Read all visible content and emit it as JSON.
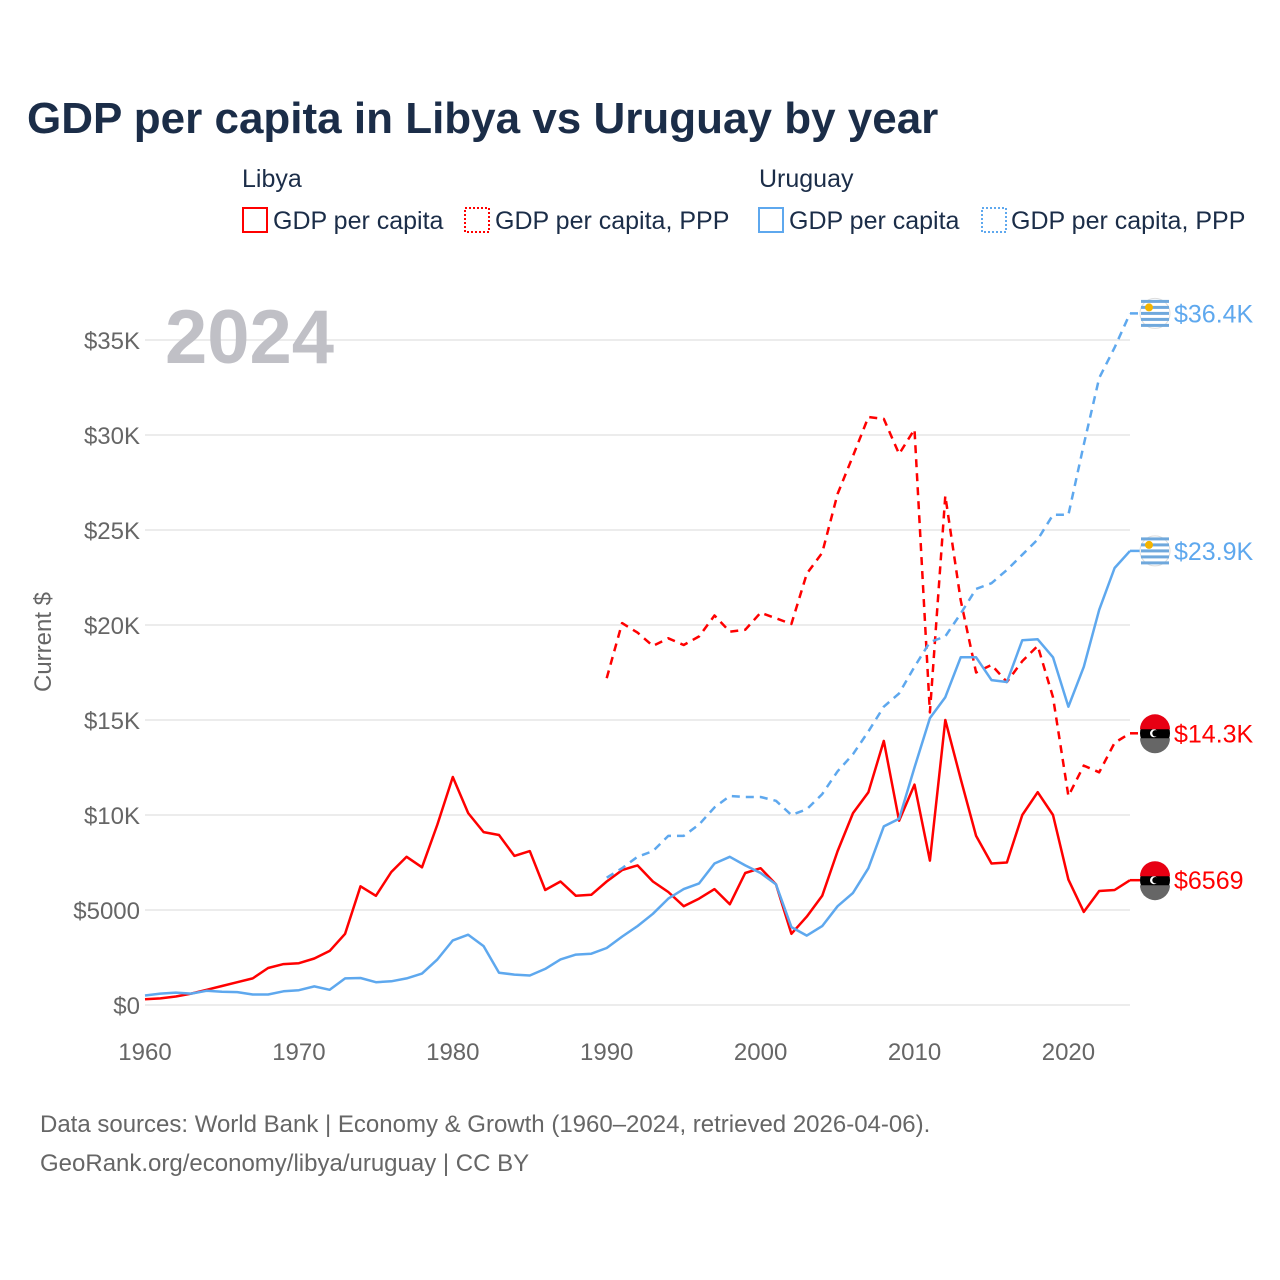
{
  "chart_data": {
    "type": "line",
    "title": "GDP per capita in Libya vs Uruguay by year",
    "ylabel": "Current $",
    "xlabel": "",
    "year_label": "2024",
    "xlim": [
      1960,
      2024
    ],
    "ylim": [
      0,
      36400
    ],
    "x_ticks": [
      "1960",
      "1970",
      "1980",
      "1990",
      "2000",
      "2010",
      "2020"
    ],
    "y_ticks": [
      {
        "value": 0,
        "label": "$0"
      },
      {
        "value": 5000,
        "label": "$5000"
      },
      {
        "value": 10000,
        "label": "$10K"
      },
      {
        "value": 15000,
        "label": "$15K"
      },
      {
        "value": 20000,
        "label": "$20K"
      },
      {
        "value": 25000,
        "label": "$25K"
      },
      {
        "value": 30000,
        "label": "$30K"
      },
      {
        "value": 35000,
        "label": "$35K"
      }
    ],
    "legend": {
      "groups": [
        {
          "country": "Libya",
          "items": [
            "GDP per capita",
            "GDP per capita, PPP"
          ]
        },
        {
          "country": "Uruguay",
          "items": [
            "GDP per capita",
            "GDP per capita, PPP"
          ]
        }
      ],
      "placement": "top"
    },
    "series": [
      {
        "name": "Libya GDP per capita",
        "color": "#ff0000",
        "dash": false,
        "start_year": 1960,
        "end_label": "$6569",
        "values": [
          0.3,
          0.35,
          0.45,
          0.6,
          0.8,
          1.0,
          1.2,
          1.4,
          1.95,
          2.15,
          2.2,
          2.45,
          2.85,
          3.75,
          6.25,
          5.75,
          7.0,
          7.8,
          7.25,
          9.5,
          12.0,
          10.1,
          9.1,
          8.95,
          7.85,
          8.1,
          6.05,
          6.5,
          5.75,
          5.8,
          6.5,
          7.1,
          7.35,
          6.5,
          5.95,
          5.2,
          5.6,
          6.1,
          5.3,
          6.95,
          7.2,
          6.35,
          3.75,
          4.65,
          5.75,
          8.1,
          10.1,
          11.2,
          13.9,
          9.7,
          11.6,
          7.6,
          15.0,
          11.9,
          8.9,
          7.45,
          7.5,
          10.0,
          11.2,
          10.0,
          6.6,
          4.9,
          6.0,
          6.05,
          6.569
        ]
      },
      {
        "name": "Libya GDP per capita, PPP",
        "color": "#ff0000",
        "dash": true,
        "start_year": 1990,
        "end_label": "$14.3K",
        "values": [
          17.2,
          20.1,
          19.6,
          18.9,
          19.3,
          18.95,
          19.4,
          20.5,
          19.65,
          19.75,
          20.65,
          20.35,
          20.05,
          22.7,
          23.8,
          26.9,
          28.9,
          30.95,
          30.85,
          29.0,
          30.3,
          15.4,
          26.8,
          21.3,
          17.5,
          17.9,
          17.0,
          18.1,
          18.9,
          16.2,
          11.0,
          12.6,
          12.25,
          13.8,
          14.3
        ]
      },
      {
        "name": "Uruguay GDP per capita",
        "color": "#5ea8ee",
        "dash": false,
        "start_year": 1960,
        "end_label": "$23.9K",
        "values": [
          0.5,
          0.6,
          0.65,
          0.6,
          0.75,
          0.7,
          0.68,
          0.55,
          0.55,
          0.72,
          0.78,
          0.98,
          0.8,
          1.4,
          1.42,
          1.2,
          1.25,
          1.4,
          1.65,
          2.4,
          3.4,
          3.7,
          3.1,
          1.7,
          1.6,
          1.55,
          1.9,
          2.4,
          2.65,
          2.7,
          3.0,
          3.6,
          4.15,
          4.8,
          5.6,
          6.1,
          6.4,
          7.45,
          7.8,
          7.35,
          6.95,
          6.35,
          4.1,
          3.65,
          4.15,
          5.2,
          5.9,
          7.2,
          9.4,
          9.8,
          12.5,
          15.1,
          16.2,
          18.3,
          18.3,
          17.1,
          17.0,
          19.2,
          19.25,
          18.3,
          15.7,
          17.8,
          20.8,
          23.0,
          23.9
        ]
      },
      {
        "name": "Uruguay GDP per capita, PPP",
        "color": "#5ea8ee",
        "dash": true,
        "start_year": 1990,
        "end_label": "$36.4K",
        "values": [
          6.7,
          7.2,
          7.8,
          8.1,
          8.9,
          8.9,
          9.5,
          10.4,
          11.0,
          10.95,
          10.95,
          10.75,
          10.0,
          10.3,
          11.1,
          12.3,
          13.2,
          14.4,
          15.7,
          16.4,
          17.8,
          19.1,
          19.4,
          20.6,
          21.9,
          22.2,
          22.9,
          23.7,
          24.5,
          25.8,
          25.8,
          29.5,
          33.0,
          34.6,
          36.4
        ]
      }
    ],
    "value_units": "thousands of current US$",
    "source_lines": [
      "Data sources: World Bank | Economy & Growth (1960–2024, retrieved 2026-04-06).",
      "GeoRank.org/economy/libya/uruguay | CC BY"
    ]
  }
}
